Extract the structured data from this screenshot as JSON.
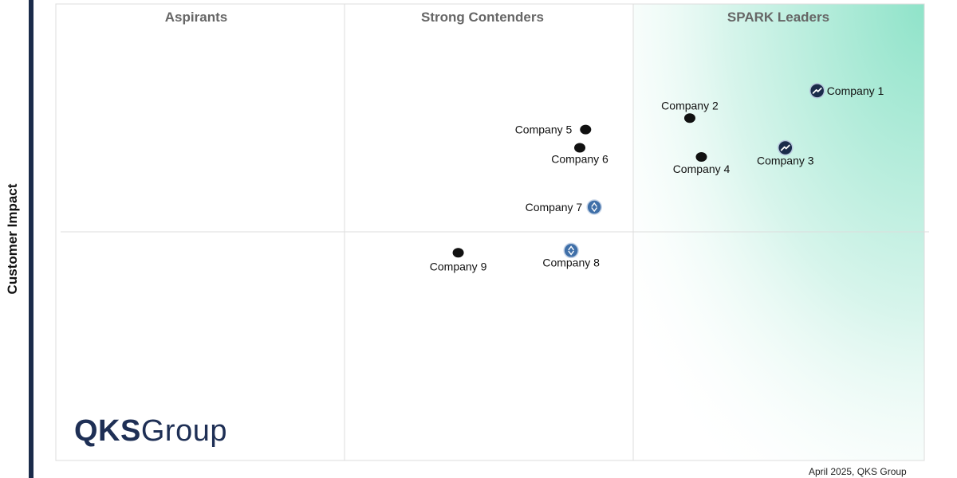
{
  "chart_data": {
    "type": "scatter",
    "title": "",
    "xlabel": "",
    "ylabel": "Customer Impact",
    "xlim": [
      0,
      3
    ],
    "ylim": [
      0,
      2
    ],
    "quadrants": [
      "Aspirants",
      "Strong Contenders",
      "SPARK Leaders"
    ],
    "points": [
      {
        "label": "Company 1",
        "x": 2.63,
        "y": 1.62,
        "marker": "trend-badge"
      },
      {
        "label": "Company 2",
        "x": 2.19,
        "y": 1.5,
        "marker": "dot"
      },
      {
        "label": "Company 3",
        "x": 2.52,
        "y": 1.37,
        "marker": "trend-badge"
      },
      {
        "label": "Company 4",
        "x": 2.23,
        "y": 1.33,
        "marker": "dot"
      },
      {
        "label": "Company 5",
        "x": 1.83,
        "y": 1.45,
        "marker": "dot"
      },
      {
        "label": "Company 6",
        "x": 1.81,
        "y": 1.37,
        "marker": "dot"
      },
      {
        "label": "Company 7",
        "x": 1.86,
        "y": 1.11,
        "marker": "arrow-badge"
      },
      {
        "label": "Company 8",
        "x": 1.78,
        "y": 0.92,
        "marker": "arrow-badge"
      },
      {
        "label": "Company 9",
        "x": 1.39,
        "y": 0.91,
        "marker": "dot"
      }
    ]
  },
  "logo": {
    "part1": "QKS",
    "part2": "Group"
  },
  "footer_note": "April 2025, QKS Group",
  "colors": {
    "leader_gradient": "#9ee6cf",
    "marker": "#111111",
    "badge_dark": "#1a2b4a",
    "badge_blue": "#3f6fa8",
    "grid": "#dddddd"
  }
}
